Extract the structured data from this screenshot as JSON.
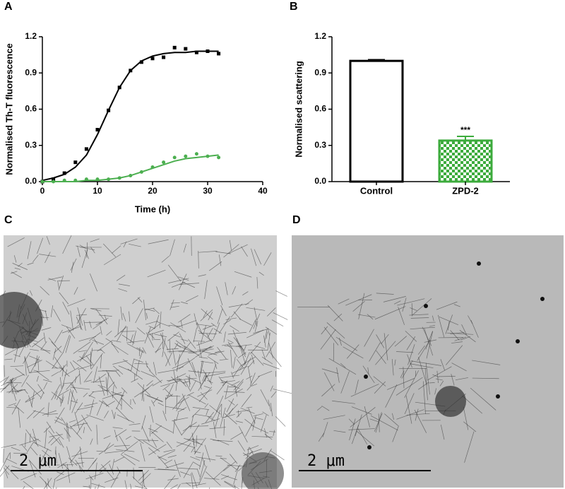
{
  "chart_data": [
    {
      "type": "line",
      "panel": "A",
      "x": [
        0,
        2,
        4,
        6,
        8,
        10,
        12,
        14,
        16,
        18,
        20,
        22,
        24,
        26,
        28,
        30,
        32
      ],
      "series": [
        {
          "color": "#000000",
          "values": [
            0,
            0.02,
            0.07,
            0.16,
            0.27,
            0.43,
            0.59,
            0.78,
            0.92,
            0.99,
            1.02,
            1.03,
            1.11,
            1.1,
            1.07,
            1.08,
            1.06
          ],
          "fit": [
            0.01,
            0.03,
            0.06,
            0.12,
            0.22,
            0.39,
            0.59,
            0.78,
            0.92,
            1.0,
            1.04,
            1.06,
            1.07,
            1.07,
            1.08,
            1.08,
            1.08
          ]
        },
        {
          "color": "#4caf50",
          "values": [
            0,
            0,
            0.01,
            0.01,
            0.02,
            0.02,
            0.02,
            0.03,
            0.05,
            0.08,
            0.12,
            0.16,
            0.2,
            0.21,
            0.23,
            0.21,
            0.2
          ],
          "fit": [
            0,
            0,
            0,
            0,
            0.01,
            0.01,
            0.02,
            0.03,
            0.05,
            0.08,
            0.11,
            0.14,
            0.17,
            0.19,
            0.2,
            0.21,
            0.22
          ]
        }
      ],
      "x_label": "Time (h)",
      "y_label": "Normalised Th-T fluorescence",
      "xlim": [
        0,
        40
      ],
      "xticks": [
        0,
        10,
        20,
        30,
        40
      ],
      "ylim": [
        0,
        1.2
      ],
      "yticks": [
        {
          "value": 0,
          "label": "0.0"
        },
        0.3,
        0.6,
        0.9,
        1.2
      ]
    },
    {
      "type": "bar",
      "panel": "B",
      "categories": [
        "Control",
        "ZPD-2"
      ],
      "values": [
        1.0,
        0.34
      ],
      "errors": [
        0.01,
        0.035
      ],
      "annotations": [
        "",
        "***"
      ],
      "y_label": "Normalised scattering",
      "ylim": [
        0,
        1.2
      ],
      "yticks": [
        {
          "value": 0,
          "label": "0.0"
        },
        0.3,
        0.6,
        0.9,
        1.2
      ]
    }
  ],
  "images": [
    {
      "panel": "C",
      "scale_bar": "2 μm"
    },
    {
      "panel": "D",
      "scale_bar": "2 μm"
    }
  ]
}
